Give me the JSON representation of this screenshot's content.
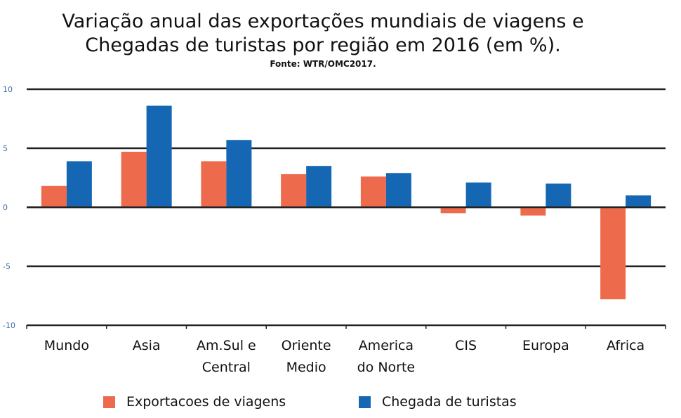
{
  "title_line1": "Variação anual das exportações mundiais de viagens e",
  "title_line2": "Chegadas de turistas por região em 2016 (em %).",
  "source": "Fonte: WTR/OMC2017.",
  "chart_data": {
    "type": "bar",
    "categories": [
      [
        "Mundo"
      ],
      [
        "Asia"
      ],
      [
        "Am.Sul e",
        "Central"
      ],
      [
        "Oriente",
        "Medio"
      ],
      [
        "America",
        "do Norte"
      ],
      [
        "CIS"
      ],
      [
        "Europa"
      ],
      [
        "Africa"
      ]
    ],
    "series": [
      {
        "name": "Exportacoes de viagens",
        "color": "#ee6a4c",
        "values": [
          1.8,
          4.7,
          3.9,
          2.8,
          2.6,
          -0.5,
          -0.7,
          -7.8
        ]
      },
      {
        "name": "Chegada de turistas",
        "color": "#1667b3",
        "values": [
          3.9,
          8.6,
          5.7,
          3.5,
          2.9,
          2.1,
          2.0,
          1.0
        ]
      }
    ],
    "yticks": [
      "10",
      "5",
      "0",
      "-5",
      "-10"
    ],
    "ylim": [
      -10,
      10
    ],
    "grid": true,
    "legend_position": "bottom"
  }
}
